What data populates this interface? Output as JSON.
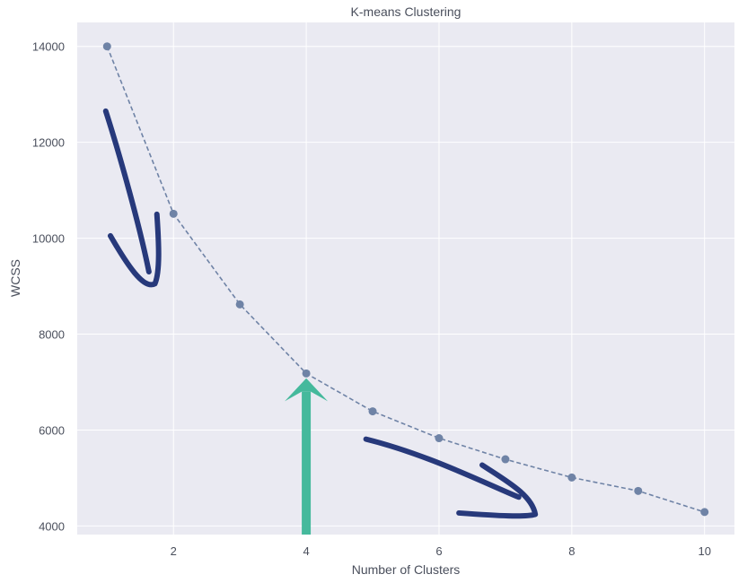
{
  "chart_data": {
    "type": "line",
    "title": "K-means Clustering",
    "xlabel": "Number of Clusters",
    "ylabel": "WCSS",
    "x": [
      1,
      2,
      3,
      4,
      5,
      6,
      7,
      8,
      9,
      10
    ],
    "series": [
      {
        "values": [
          14000,
          10510,
          8620,
          7180,
          6390,
          5830,
          5390,
          5010,
          4730,
          4290
        ],
        "style": "dashed line with circle markers",
        "color": "#6f83a6"
      }
    ],
    "xlim": [
      0.55,
      10.45
    ],
    "ylim": [
      3820,
      14500
    ],
    "xticks": [
      2,
      4,
      6,
      8,
      10
    ],
    "yticks": [
      4000,
      6000,
      8000,
      10000,
      12000,
      14000
    ],
    "grid": true,
    "background_color": "#eaeaf2",
    "grid_color": "#ffffff",
    "annotations": [
      {
        "name": "down-arrow",
        "description": "hand-drawn arrow pointing down along steep section",
        "color": "#27397b"
      },
      {
        "name": "elbow-arrow",
        "description": "upward arrow marking the elbow at 4 clusters",
        "color": "#45b99c"
      },
      {
        "name": "flat-arrow",
        "description": "hand-drawn arrow pointing right along flat section",
        "color": "#27397b"
      }
    ]
  }
}
